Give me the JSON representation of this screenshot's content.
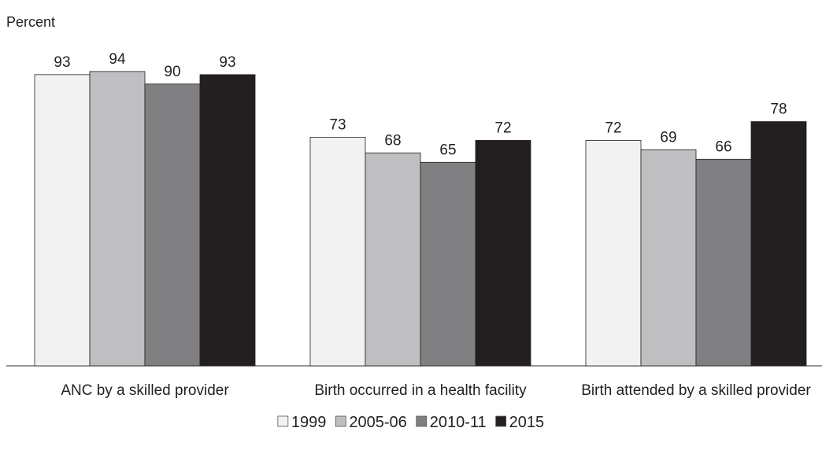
{
  "chart_data": {
    "type": "bar",
    "y_label": "Percent",
    "categories": [
      "ANC by a skilled provider",
      "Birth occurred in a health facility",
      "Birth attended by a skilled provider"
    ],
    "series": [
      {
        "name": "1999",
        "color": "#f2f2f2",
        "values": [
          93,
          73,
          72
        ]
      },
      {
        "name": "2005-06",
        "color": "#bfbfc1",
        "values": [
          94,
          68,
          69
        ]
      },
      {
        "name": "2010-11",
        "color": "#808083",
        "values": [
          90,
          65,
          66
        ]
      },
      {
        "name": "2015",
        "color": "#231f20",
        "values": [
          93,
          72,
          78
        ]
      }
    ],
    "ylim": [
      0,
      100
    ],
    "legend": "bottom"
  }
}
